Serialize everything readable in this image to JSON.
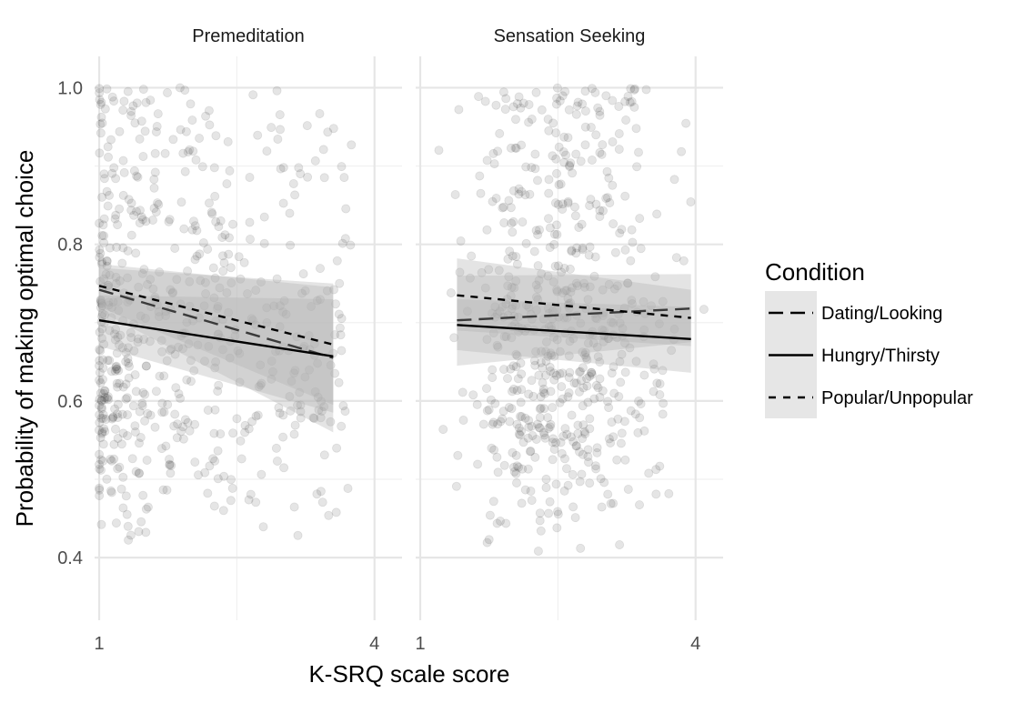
{
  "chart_data": {
    "type": "scatter",
    "title": "",
    "xlabel": "K-SRQ scale score",
    "ylabel": "Probability of making optimal choice",
    "xlim": [
      0.95,
      4.3
    ],
    "ylim": [
      0.32,
      1.04
    ],
    "x_ticks": [
      1,
      4
    ],
    "x_tick_labels": [
      "1",
      "4"
    ],
    "x_minor_gridlines": [
      2.5
    ],
    "y_ticks": [
      0.4,
      0.6,
      0.8,
      1.0
    ],
    "y_tick_labels": [
      "0.4",
      "0.6",
      "0.8",
      "1.0"
    ],
    "y_minor_gridlines": [
      0.5,
      0.7,
      0.9
    ],
    "grid": true,
    "point_color": "#333333",
    "point_alpha": 0.13,
    "ribbon_color": "#b3b3b3",
    "line_color": "#000000",
    "legend": {
      "title": "Condition",
      "position": "right",
      "entries": [
        {
          "label": "Dating/Looking",
          "dash": "long-dash"
        },
        {
          "label": "Hungry/Thirsty",
          "dash": "solid"
        },
        {
          "label": "Popular/Unpopular",
          "dash": "short-dash"
        }
      ]
    },
    "facets": [
      {
        "label": "Premeditation",
        "points": {
          "x_range": [
            1.0,
            3.75
          ],
          "x_center": 1.85,
          "y_range": [
            0.35,
            1.01
          ],
          "n": 620
        },
        "series": [
          {
            "name": "Dating/Looking",
            "x": [
              1.0,
              3.55
            ],
            "y": [
              0.742,
              0.655
            ],
            "ci_low": [
              0.715,
              0.56
            ],
            "ci_high": [
              0.77,
              0.75
            ]
          },
          {
            "name": "Hungry/Thirsty",
            "x": [
              1.0,
              3.55
            ],
            "y": [
              0.703,
              0.657
            ],
            "ci_low": [
              0.67,
              0.585
            ],
            "ci_high": [
              0.735,
              0.73
            ]
          },
          {
            "name": "Popular/Unpopular",
            "x": [
              1.0,
              3.55
            ],
            "y": [
              0.747,
              0.672
            ],
            "ci_low": [
              0.72,
              0.595
            ],
            "ci_high": [
              0.775,
              0.745
            ]
          }
        ]
      },
      {
        "label": "Sensation Seeking",
        "points": {
          "x_range": [
            1.15,
            4.1
          ],
          "x_center": 2.55,
          "y_range": [
            0.35,
            1.01
          ],
          "n": 620
        },
        "series": [
          {
            "name": "Dating/Looking",
            "x": [
              1.4,
              3.95
            ],
            "y": [
              0.703,
              0.718
            ],
            "ci_low": [
              0.645,
              0.675
            ],
            "ci_high": [
              0.76,
              0.762
            ]
          },
          {
            "name": "Hungry/Thirsty",
            "x": [
              1.4,
              3.95
            ],
            "y": [
              0.697,
              0.679
            ],
            "ci_low": [
              0.665,
              0.636
            ],
            "ci_high": [
              0.73,
              0.72
            ]
          },
          {
            "name": "Popular/Unpopular",
            "x": [
              1.4,
              3.95
            ],
            "y": [
              0.735,
              0.706
            ],
            "ci_low": [
              0.69,
              0.67
            ],
            "ci_high": [
              0.782,
              0.742
            ]
          }
        ]
      }
    ]
  }
}
